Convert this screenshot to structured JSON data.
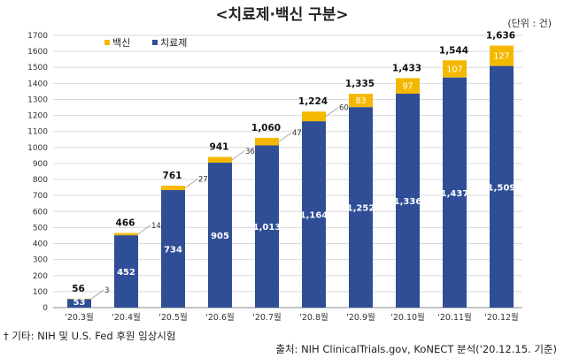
{
  "title": "<치료제·백신 구분>",
  "unit": "(단위 : 건)",
  "footnote": "† 기타: NIH 및 U.S. Fed 후원 임상시험",
  "source": "출처: NIH ClinicalTrials.gov, KoNECT 분석('20.12.15. 기준)",
  "colors": {
    "vaccine": "#F5B800",
    "treatment": "#2F4E96",
    "grid": "#D9D9D9"
  },
  "chart_data": {
    "type": "bar",
    "stacked": true,
    "categories": [
      "'20.3월",
      "'20.4월",
      "'20.5월",
      "'20.6월",
      "'20.7월",
      "'20.8월",
      "'20.9월",
      "'20.10월",
      "'20.11월",
      "'20.12월"
    ],
    "series": [
      {
        "name": "치료제",
        "values": [
          53,
          452,
          734,
          905,
          1013,
          1164,
          1252,
          1336,
          1437,
          1509
        ]
      },
      {
        "name": "백신",
        "values": [
          3,
          14,
          27,
          36,
          47,
          60,
          83,
          97,
          107,
          127
        ]
      }
    ],
    "value_labels": {
      "치료제": [
        "53",
        "452",
        "734",
        "905",
        "1,013",
        "1,164",
        "1,252",
        "1,336",
        "1,437",
        "1,509"
      ],
      "백신": [
        "3",
        "14",
        "27",
        "36",
        "47",
        "60",
        "83",
        "97",
        "107",
        "127"
      ]
    },
    "totals": [
      "56",
      "466",
      "761",
      "941",
      "1,060",
      "1,224",
      "1,335",
      "1,433",
      "1,544",
      "1,636"
    ],
    "ylim": [
      0,
      1700
    ],
    "yticks": [
      "0",
      "100",
      "200",
      "300",
      "400",
      "500",
      "600",
      "700",
      "800",
      "900",
      "1000",
      "1100",
      "1200",
      "1300",
      "1400",
      "1500",
      "1600",
      "1700"
    ],
    "grid": true,
    "legend_position": "top-left"
  }
}
